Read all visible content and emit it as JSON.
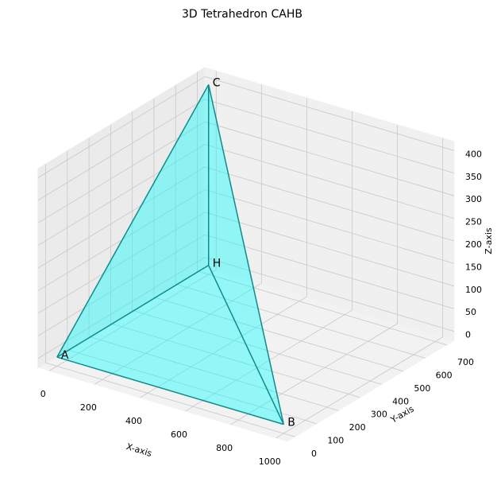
{
  "chart_data": {
    "type": "tetrahedron3d",
    "title": "3D Tetrahedron CAHB",
    "x_label": "X-axis",
    "y_label": "Y-axis",
    "z_label": "Z-axis",
    "vertices": [
      {
        "label": "C",
        "x": 0,
        "y": 700,
        "z": 400
      },
      {
        "label": "A",
        "x": 0,
        "y": 0,
        "z": 0
      },
      {
        "label": "H",
        "x": 0,
        "y": 700,
        "z": 0
      },
      {
        "label": "B",
        "x": 1000,
        "y": 0,
        "z": 0
      }
    ],
    "face_color": "#00ffff",
    "edge_color": "#0e8c8c",
    "xlim": [
      -50,
      1050
    ],
    "ylim": [
      -35,
      735
    ],
    "zlim": [
      -20,
      420
    ],
    "xticks": [
      0,
      200,
      400,
      600,
      800,
      1000
    ],
    "yticks": [
      0,
      100,
      200,
      300,
      400,
      500,
      600,
      700
    ],
    "zticks": [
      0,
      50,
      100,
      150,
      200,
      250,
      300,
      350,
      400
    ],
    "grid": true
  }
}
